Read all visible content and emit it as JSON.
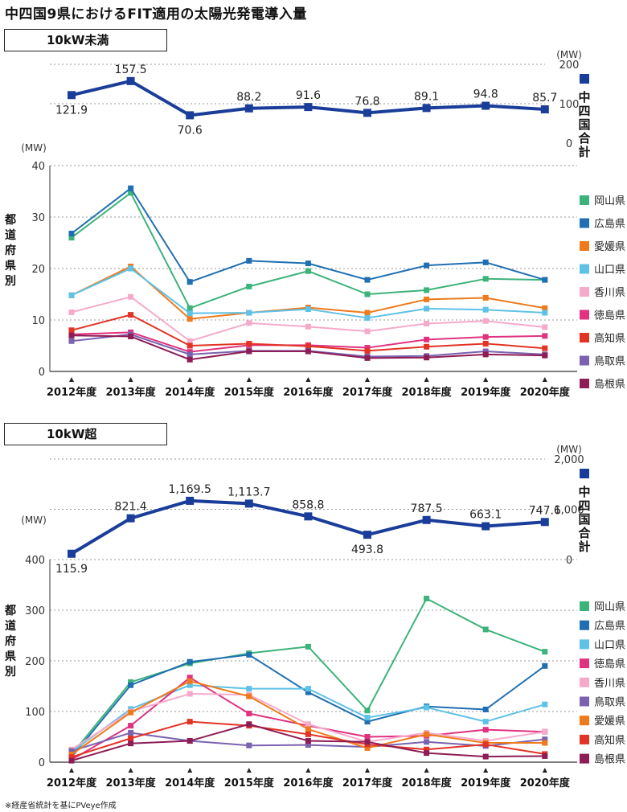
{
  "title": "中四国9県におけるFIT適用の太陽光発電導入量",
  "footnote": "※経産省統計を基にPVeye作成",
  "chart_data": [
    {
      "type": "line",
      "section_label": "10kW未満",
      "categories": [
        "2012年度",
        "2013年度",
        "2014年度",
        "2015年度",
        "2016年度",
        "2017年度",
        "2018年度",
        "2019年度",
        "2020年度"
      ],
      "total": {
        "name": "中四国合計",
        "color": "#1a3d99",
        "unit": "(MW)",
        "ylim": [
          0,
          200
        ],
        "ticks": [
          "0",
          "100",
          "200"
        ],
        "values": [
          121.9,
          157.5,
          70.6,
          88.2,
          91.6,
          76.8,
          89.1,
          94.8,
          85.7
        ],
        "labels": [
          "121.9",
          "157.5",
          "70.6",
          "88.2",
          "91.6",
          "76.8",
          "89.1",
          "94.8",
          "85.7"
        ],
        "label_below": [
          true,
          false,
          true,
          false,
          false,
          false,
          false,
          false,
          false
        ]
      },
      "prefectures": {
        "axis_title": "都道府県別",
        "unit": "(MW)",
        "ylim": [
          0,
          40
        ],
        "ticks": [
          "0",
          "10",
          "20",
          "30",
          "40"
        ],
        "series": [
          {
            "name": "岡山県",
            "color": "#3cb37a",
            "values": [
              26.0,
              34.7,
              12.3,
              16.5,
              19.5,
              15.0,
              15.8,
              18.0,
              17.8
            ]
          },
          {
            "name": "広島県",
            "color": "#1f6fb2",
            "values": [
              26.8,
              35.6,
              17.4,
              21.5,
              21.0,
              17.8,
              20.6,
              21.2,
              17.8
            ]
          },
          {
            "name": "愛媛県",
            "color": "#ee7a1c",
            "values": [
              14.8,
              20.4,
              10.2,
              11.4,
              12.4,
              11.4,
              14.0,
              14.3,
              12.3
            ]
          },
          {
            "name": "山口県",
            "color": "#5ec2e6",
            "values": [
              14.8,
              20.0,
              11.3,
              11.4,
              12.1,
              10.4,
              12.2,
              12.0,
              11.4
            ]
          },
          {
            "name": "香川県",
            "color": "#f6aacb",
            "values": [
              11.5,
              14.5,
              5.9,
              9.4,
              8.7,
              7.8,
              9.3,
              9.8,
              8.6
            ]
          },
          {
            "name": "徳島県",
            "color": "#e0327f",
            "values": [
              7.2,
              7.6,
              3.8,
              5.1,
              5.1,
              4.6,
              6.2,
              6.7,
              6.9
            ]
          },
          {
            "name": "高知県",
            "color": "#e23324",
            "values": [
              8.0,
              11.0,
              5.0,
              5.4,
              4.9,
              4.0,
              4.8,
              5.4,
              4.5
            ]
          },
          {
            "name": "鳥取県",
            "color": "#7a62b0",
            "values": [
              5.9,
              7.2,
              3.3,
              4.0,
              4.0,
              2.9,
              3.0,
              3.9,
              3.3
            ]
          },
          {
            "name": "島根県",
            "color": "#8e1c55",
            "values": [
              7.0,
              6.8,
              2.3,
              3.9,
              3.9,
              2.6,
              2.7,
              3.3,
              3.1
            ]
          }
        ]
      }
    },
    {
      "type": "line",
      "section_label": "10kW超",
      "categories": [
        "2012年度",
        "2013年度",
        "2014年度",
        "2015年度",
        "2016年度",
        "2017年度",
        "2018年度",
        "2019年度",
        "2020年度"
      ],
      "total": {
        "name": "中四国合計",
        "color": "#1a3d99",
        "unit": "(MW)",
        "ylim": [
          0,
          2000
        ],
        "ticks": [
          "0",
          "1,000",
          "2,000"
        ],
        "values": [
          115.9,
          821.4,
          1169.5,
          1113.7,
          858.8,
          493.8,
          787.5,
          663.1,
          747.6
        ],
        "labels": [
          "115.9",
          "821.4",
          "1,169.5",
          "1,113.7",
          "858.8",
          "493.8",
          "787.5",
          "663.1",
          "747.6"
        ],
        "label_below": [
          true,
          false,
          false,
          false,
          false,
          true,
          false,
          false,
          false
        ]
      },
      "prefectures": {
        "axis_title": "都道府県別",
        "unit": "(MW)",
        "ylim": [
          0,
          400
        ],
        "ticks": [
          "0",
          "100",
          "200",
          "300",
          "400"
        ],
        "series": [
          {
            "name": "岡山県",
            "color": "#3cb37a",
            "values": [
              15,
              158,
              195,
              215,
              228,
              102,
              323,
              262,
              218
            ]
          },
          {
            "name": "広島県",
            "color": "#1f6fb2",
            "values": [
              10,
              152,
              198,
              212,
              138,
              80,
              110,
              104,
              190
            ]
          },
          {
            "name": "山口県",
            "color": "#5ec2e6",
            "values": [
              20,
              105,
              152,
              145,
              145,
              88,
              108,
              80,
              114
            ]
          },
          {
            "name": "徳島県",
            "color": "#e0327f",
            "values": [
              5,
              72,
              167,
              96,
              72,
              50,
              52,
              64,
              60
            ]
          },
          {
            "name": "香川県",
            "color": "#f6aacb",
            "values": [
              25,
              100,
              135,
              133,
              75,
              40,
              58,
              42,
              60
            ]
          },
          {
            "name": "鳥取県",
            "color": "#7a62b0",
            "values": [
              22,
              58,
              42,
              33,
              34,
              30,
              40,
              32,
              45
            ]
          },
          {
            "name": "愛媛県",
            "color": "#ee7a1c",
            "values": [
              15,
              98,
              160,
              130,
              65,
              28,
              55,
              38,
              38
            ]
          },
          {
            "name": "高知県",
            "color": "#e23324",
            "values": [
              10,
              47,
              80,
              72,
              55,
              35,
              25,
              35,
              16
            ]
          },
          {
            "name": "島根県",
            "color": "#8e1c55",
            "values": [
              3,
              37,
              42,
              75,
              42,
              40,
              18,
              11,
              12
            ]
          }
        ]
      }
    }
  ]
}
